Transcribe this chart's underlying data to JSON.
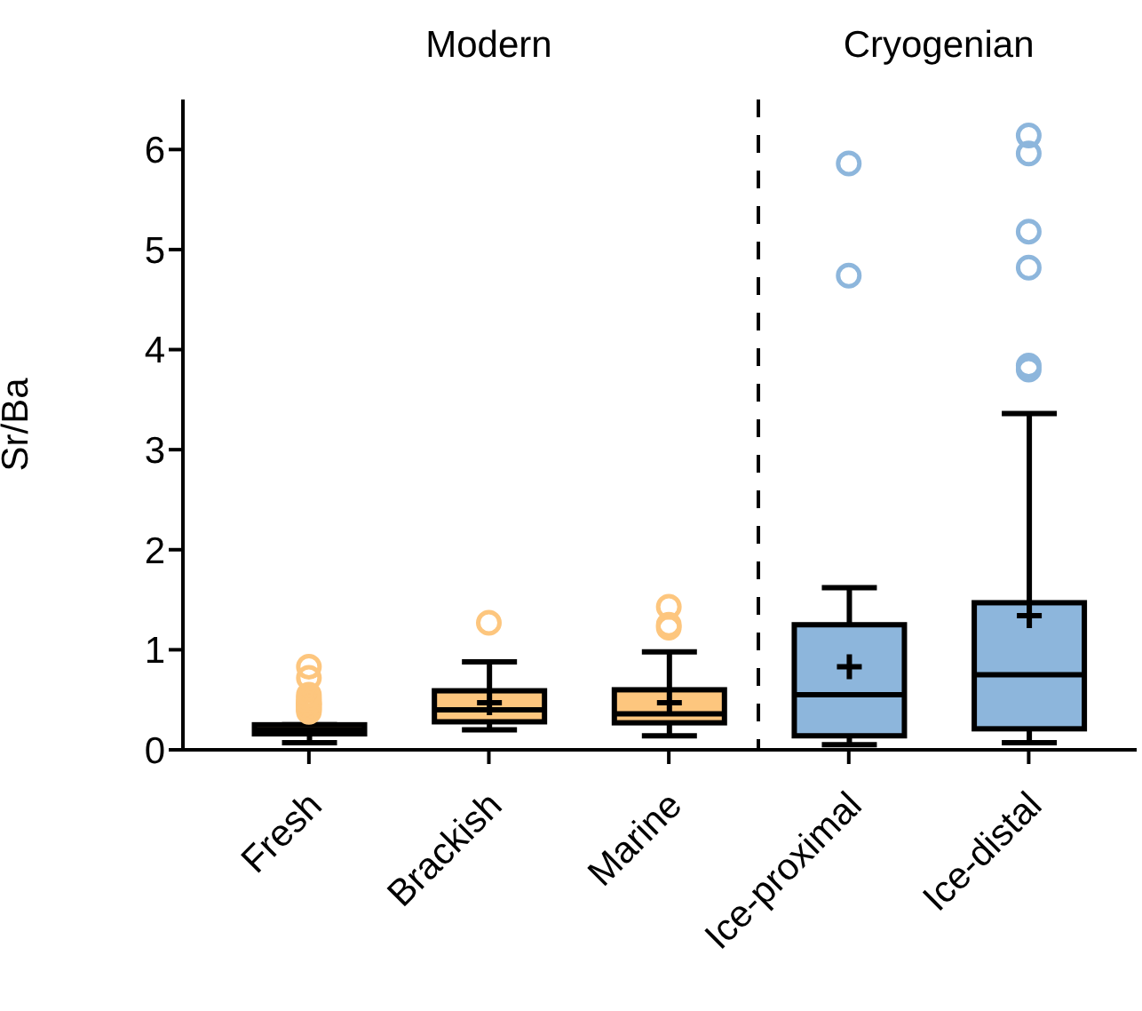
{
  "chart_data": {
    "type": "box",
    "ylabel": "Sr/Ba",
    "categories": [
      "Fresh",
      "Brackish",
      "Marine",
      "Ice-proximal",
      "Ice-distal"
    ],
    "colors": [
      "#fdc67e",
      "#fdc67e",
      "#fdc67e",
      "#8db6dc",
      "#8db6dc"
    ],
    "boxes": [
      {
        "low": 0.07,
        "q1": 0.16,
        "median": 0.2,
        "q3": 0.25,
        "high": 0.25,
        "outliers": [
          0.38,
          0.4,
          0.41,
          0.42,
          0.44,
          0.45,
          0.46,
          0.47,
          0.48,
          0.5,
          0.52,
          0.55,
          0.72,
          0.83
        ]
      },
      {
        "low": 0.2,
        "q1": 0.28,
        "median": 0.4,
        "q3": 0.59,
        "high": 0.88,
        "mean": 0.47,
        "outliers": [
          1.27
        ]
      },
      {
        "low": 0.14,
        "q1": 0.27,
        "median": 0.36,
        "q3": 0.6,
        "high": 0.98,
        "mean": 0.47,
        "outliers": [
          1.43,
          1.22,
          1.25
        ]
      },
      {
        "low": 0.05,
        "q1": 0.14,
        "median": 0.55,
        "q3": 1.25,
        "high": 1.62,
        "mean": 0.83,
        "outliers": [
          5.86,
          4.74
        ]
      },
      {
        "low": 0.07,
        "q1": 0.21,
        "median": 0.75,
        "q3": 1.47,
        "high": 3.36,
        "mean": 1.34,
        "outliers": [
          6.14,
          5.96,
          5.18,
          4.82,
          3.8,
          3.84
        ]
      }
    ],
    "ylim": [
      0,
      6.5
    ],
    "yticks": [
      0,
      1,
      2,
      3,
      4,
      5,
      6
    ],
    "annotations": [
      "Modern",
      "Cryogenian"
    ],
    "marker": "circle",
    "grid": false
  }
}
